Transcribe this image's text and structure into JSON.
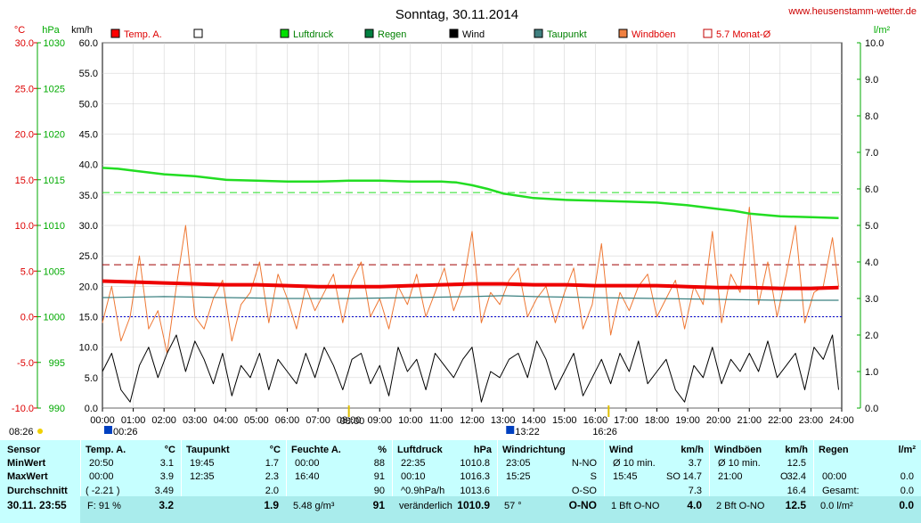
{
  "header": {
    "title": "Sonntag, 30.11.2014",
    "website": "www.heusenstamm-wetter.de",
    "unit_temp": "°C",
    "unit_hpa": "hPa",
    "unit_kmh": "km/h",
    "unit_rain": "l/m²"
  },
  "legend": [
    {
      "label": "Temp. A.",
      "color": "#ff0000",
      "style": "fill"
    },
    {
      "label": "",
      "color": "#ffffff",
      "style": "outline"
    },
    {
      "label": "Luftdruck",
      "color": "#00e000",
      "style": "fill"
    },
    {
      "label": "Regen",
      "color": "#008040",
      "style": "fill"
    },
    {
      "label": "Wind",
      "color": "#000000",
      "style": "fill"
    },
    {
      "label": "Taupunkt",
      "color": "#408080",
      "style": "fill"
    },
    {
      "label": "Windböen",
      "color": "#f08040",
      "style": "fill"
    },
    {
      "label": "5.7 Monat-Ø",
      "color": "#c00000",
      "style": "outline"
    }
  ],
  "colors": {
    "temp": "#ee0000",
    "pressure": "#22dd22",
    "wind": "#000000",
    "gust": "#ee7733",
    "dew": "#3a8080",
    "monthavg": "#a00000",
    "zero": "#0000cc",
    "axis_temp": "#dd0000",
    "axis_hpa": "#00aa00",
    "panel": "#c6ffff",
    "panel_dark": "#a9ecec"
  },
  "chart_data": {
    "type": "line",
    "x_ticks": [
      "00:00",
      "01:00",
      "02:00",
      "03:00",
      "04:00",
      "05:00",
      "06:00",
      "07:00",
      "08:00",
      "09:00",
      "10:00",
      "11:00",
      "12:00",
      "13:00",
      "14:00",
      "15:00",
      "16:00",
      "17:00",
      "18:00",
      "19:00",
      "20:00",
      "21:00",
      "22:00",
      "23:00",
      "24:00"
    ],
    "axis_kmh": {
      "min": 0,
      "max": 60,
      "ticks": [
        "0.0",
        "5.0",
        "10.0",
        "15.0",
        "20.0",
        "25.0",
        "30.0",
        "35.0",
        "40.0",
        "45.0",
        "50.0",
        "55.0",
        "60.0"
      ]
    },
    "axis_temp": {
      "min": -10,
      "max": 30,
      "ticks": [
        "-10.0",
        "-5.0",
        "0.0",
        "5.0",
        "10.0",
        "15.0",
        "20.0",
        "25.0",
        "30.0"
      ]
    },
    "axis_hpa": {
      "min": 990,
      "max": 1030,
      "ticks": [
        "990",
        "995",
        "1000",
        "1005",
        "1010",
        "1015",
        "1020",
        "1025",
        "1030"
      ]
    },
    "axis_rain": {
      "min": 0,
      "max": 10,
      "ticks": [
        "0.0",
        "1.0",
        "2.0",
        "3.0",
        "4.0",
        "5.0",
        "6.0",
        "7.0",
        "8.0",
        "9.0",
        "10.0"
      ]
    },
    "pressure_reference": 1013.6,
    "month_avg_temp": 5.7,
    "sunrise": "08:00",
    "sunset": "16:26",
    "markers": {
      "day_start": "08:26",
      "low_marker": "00:26",
      "high_marker": "13:22",
      "sunset_label": "16:26"
    },
    "series": [
      {
        "name": "Temp. A.",
        "axis": "temp",
        "x": [
          0,
          1,
          2,
          3,
          4,
          5,
          6,
          7,
          8,
          9,
          10,
          11,
          12,
          13,
          14,
          15,
          16,
          17,
          18,
          19,
          20,
          21,
          22,
          23,
          23.9
        ],
        "values": [
          3.9,
          3.8,
          3.7,
          3.6,
          3.5,
          3.5,
          3.4,
          3.3,
          3.3,
          3.3,
          3.4,
          3.5,
          3.6,
          3.6,
          3.5,
          3.5,
          3.4,
          3.4,
          3.4,
          3.3,
          3.2,
          3.2,
          3.1,
          3.1,
          3.2
        ]
      },
      {
        "name": "Taupunkt",
        "axis": "temp",
        "x": [
          0,
          2,
          4,
          6,
          8,
          10,
          12,
          13,
          14,
          16,
          18,
          20,
          22,
          23.9
        ],
        "values": [
          2.1,
          2.2,
          2.1,
          2.0,
          2.0,
          2.1,
          2.2,
          2.3,
          2.2,
          2.1,
          2.0,
          1.9,
          1.8,
          1.8
        ]
      },
      {
        "name": "Luftdruck",
        "axis": "hpa",
        "x": [
          0,
          0.5,
          1,
          2,
          3,
          4,
          5,
          6,
          7,
          8,
          9,
          10,
          11,
          11.5,
          12,
          12.5,
          13,
          14,
          15,
          16,
          17,
          18,
          19,
          20,
          20.5,
          21,
          22,
          23,
          23.9
        ],
        "values": [
          1016.3,
          1016.2,
          1016.0,
          1015.6,
          1015.4,
          1015.0,
          1014.9,
          1014.8,
          1014.8,
          1014.9,
          1014.9,
          1014.8,
          1014.8,
          1014.7,
          1014.4,
          1014.0,
          1013.5,
          1013.0,
          1012.8,
          1012.7,
          1012.6,
          1012.5,
          1012.2,
          1011.8,
          1011.6,
          1011.3,
          1011.0,
          1010.9,
          1010.8
        ]
      },
      {
        "name": "Windböen",
        "axis": "kmh",
        "x": [
          0,
          0.3,
          0.6,
          0.9,
          1.2,
          1.5,
          1.8,
          2.1,
          2.4,
          2.7,
          3.0,
          3.3,
          3.6,
          3.9,
          4.2,
          4.5,
          4.8,
          5.1,
          5.4,
          5.7,
          6.0,
          6.3,
          6.6,
          6.9,
          7.2,
          7.5,
          7.8,
          8.1,
          8.4,
          8.7,
          9.0,
          9.3,
          9.6,
          9.9,
          10.2,
          10.5,
          10.8,
          11.1,
          11.4,
          11.7,
          12.0,
          12.3,
          12.6,
          12.9,
          13.2,
          13.5,
          13.8,
          14.1,
          14.4,
          14.7,
          15.0,
          15.3,
          15.6,
          15.9,
          16.2,
          16.5,
          16.8,
          17.1,
          17.4,
          17.7,
          18.0,
          18.3,
          18.6,
          18.9,
          19.2,
          19.5,
          19.8,
          20.1,
          20.4,
          20.7,
          21.0,
          21.3,
          21.6,
          21.9,
          22.2,
          22.5,
          22.8,
          23.1,
          23.4,
          23.7,
          23.9
        ],
        "values": [
          14,
          20,
          11,
          15,
          25,
          13,
          16,
          9,
          20,
          30,
          15,
          13,
          18,
          21,
          11,
          17,
          19,
          24,
          14,
          22,
          18,
          13,
          20,
          16,
          19,
          22,
          14,
          21,
          24,
          15,
          18,
          13,
          20,
          17,
          22,
          15,
          19,
          23,
          16,
          20,
          29,
          14,
          19,
          17,
          21,
          23,
          15,
          18,
          20,
          14,
          19,
          23,
          13,
          17,
          27,
          12,
          19,
          16,
          20,
          22,
          15,
          18,
          21,
          13,
          20,
          17,
          29,
          14,
          22,
          19,
          33,
          17,
          24,
          15,
          22,
          30,
          14,
          19,
          20,
          28,
          20
        ]
      },
      {
        "name": "Wind",
        "axis": "kmh",
        "x": [
          0,
          0.3,
          0.6,
          0.9,
          1.2,
          1.5,
          1.8,
          2.1,
          2.4,
          2.7,
          3.0,
          3.3,
          3.6,
          3.9,
          4.2,
          4.5,
          4.8,
          5.1,
          5.4,
          5.7,
          6.0,
          6.3,
          6.6,
          6.9,
          7.2,
          7.5,
          7.8,
          8.1,
          8.4,
          8.7,
          9.0,
          9.3,
          9.6,
          9.9,
          10.2,
          10.5,
          10.8,
          11.1,
          11.4,
          11.7,
          12.0,
          12.3,
          12.6,
          12.9,
          13.2,
          13.5,
          13.8,
          14.1,
          14.4,
          14.7,
          15.0,
          15.3,
          15.6,
          15.9,
          16.2,
          16.5,
          16.8,
          17.1,
          17.4,
          17.7,
          18.0,
          18.3,
          18.6,
          18.9,
          19.2,
          19.5,
          19.8,
          20.1,
          20.4,
          20.7,
          21.0,
          21.3,
          21.6,
          21.9,
          22.2,
          22.5,
          22.8,
          23.1,
          23.4,
          23.7,
          23.9
        ],
        "values": [
          6,
          9,
          3,
          1,
          7,
          10,
          5,
          9,
          12,
          6,
          11,
          8,
          4,
          9,
          2,
          7,
          5,
          9,
          3,
          8,
          6,
          4,
          9,
          5,
          10,
          7,
          3,
          8,
          9,
          4,
          7,
          2,
          10,
          6,
          8,
          3,
          9,
          7,
          5,
          8,
          10,
          1,
          6,
          5,
          8,
          9,
          5,
          11,
          8,
          3,
          6,
          9,
          2,
          5,
          8,
          4,
          9,
          6,
          11,
          4,
          6,
          8,
          3,
          1,
          7,
          5,
          10,
          4,
          8,
          6,
          9,
          6,
          11,
          5,
          7,
          9,
          3,
          10,
          8,
          12,
          3
        ]
      }
    ]
  },
  "table": {
    "sensor": {
      "header": "Sensor",
      "rows": [
        "MinWert",
        "MaxWert",
        "Durchschnitt"
      ],
      "footer": "30.11. 23:55"
    },
    "temp": {
      "header": "Temp. A.",
      "unit": "°C",
      "rows": [
        {
          "time": "20:50",
          "value": "3.1"
        },
        {
          "time": "00:00",
          "value": "3.9"
        },
        {
          "time": "( -2.21 )",
          "value": "3.49"
        }
      ],
      "footer_left": "F: 91 %",
      "footer_value": "3.2"
    },
    "dew": {
      "header": "Taupunkt",
      "unit": "°C",
      "rows": [
        {
          "time": "19:45",
          "value": "1.7"
        },
        {
          "time": "12:35",
          "value": "2.3"
        },
        {
          "time": "",
          "value": "2.0"
        }
      ],
      "footer_value": "1.9"
    },
    "humidity": {
      "header": "Feuchte A.",
      "unit": "%",
      "rows": [
        {
          "time": "00:00",
          "value": "88"
        },
        {
          "time": "16:40",
          "value": "91"
        },
        {
          "time": "",
          "value": "90"
        }
      ],
      "footer_left": "5.48 g/m³",
      "footer_value": "91"
    },
    "pressure": {
      "header": "Luftdruck",
      "unit": "hPa",
      "rows": [
        {
          "time": "22:35",
          "value": "1010.8"
        },
        {
          "time": "00:10",
          "value": "1016.3"
        },
        {
          "time": "^0.9hPa/h",
          "value": "1013.6"
        }
      ],
      "footer_left": "veränderlich",
      "footer_value": "1010.9"
    },
    "direction": {
      "header": "Windrichtung",
      "rows": [
        {
          "time": "23:05",
          "value": "N-NO"
        },
        {
          "time": "15:25",
          "value": "S"
        },
        {
          "time": "",
          "value": "O-SO"
        }
      ],
      "footer_left": "57 °",
      "footer_value": "O-NO"
    },
    "wind": {
      "header": "Wind",
      "unit": "km/h",
      "rows": [
        {
          "time": "Ø 10 min.",
          "value": "3.7"
        },
        {
          "time": "15:45",
          "mid": "SO",
          "value": "14.7"
        },
        {
          "time": "",
          "value": "7.3"
        }
      ],
      "footer_left": "1 Bft O-NO",
      "footer_value": "4.0"
    },
    "gust": {
      "header": "Windböen",
      "unit": "km/h",
      "rows": [
        {
          "time": "Ø 10 min.",
          "value": "12.5"
        },
        {
          "time": "21:00",
          "mid": "O",
          "value": "32.4"
        },
        {
          "time": "",
          "value": "16.4"
        }
      ],
      "footer_left": "2 Bft O-NO",
      "footer_value": "12.5"
    },
    "rain": {
      "header": "Regen",
      "unit": "l/m²",
      "rows": [
        {
          "time": "",
          "value": ""
        },
        {
          "time": "00:00",
          "value": "0.0"
        },
        {
          "time": "Gesamt:",
          "value": "0.0"
        }
      ],
      "footer_left": "0.0 l/m²",
      "footer_value": "0.0"
    }
  }
}
